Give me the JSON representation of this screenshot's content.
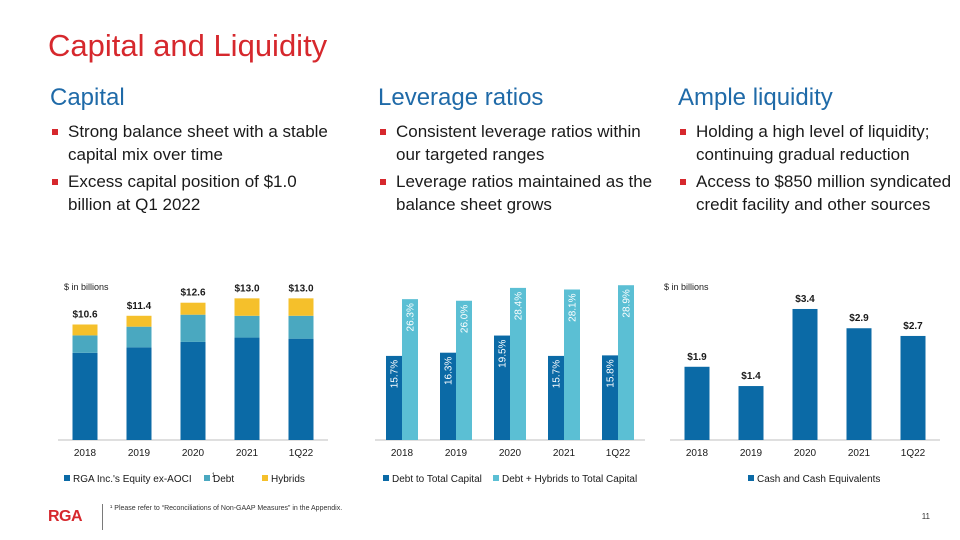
{
  "page": {
    "title": "Capital and Liquidity",
    "page_number": "11"
  },
  "columns": [
    {
      "heading": "Capital",
      "bullets": [
        "Strong balance sheet with a stable capital mix over time",
        "Excess capital position of $1.0 billion at Q1 2022"
      ]
    },
    {
      "heading": "Leverage ratios",
      "bullets": [
        "Consistent leverage ratios within our targeted ranges",
        "Leverage ratios maintained as the balance sheet grows"
      ]
    },
    {
      "heading": "Ample liquidity",
      "bullets": [
        "Holding a high level of liquidity; continuing gradual reduction",
        "Access to $850 million syndicated credit facility and other sources"
      ]
    }
  ],
  "colors": {
    "dark_blue": "#0b6aa6",
    "teal": "#4aa8c0",
    "light_teal": "#5bbfd4",
    "gold": "#f5c02b",
    "axis": "#bfbfbf",
    "red": "#d6282d"
  },
  "chart_data": [
    {
      "type": "bar",
      "stacked": true,
      "unit_label": "$ in billions",
      "categories": [
        "2018",
        "2019",
        "2020",
        "2021",
        "1Q22"
      ],
      "series": [
        {
          "name": "RGA Inc.'s Equity ex-AOCI",
          "footnote_marker": "1",
          "color": "#0b6aa6",
          "values": [
            8.0,
            8.5,
            9.0,
            9.4,
            9.3
          ]
        },
        {
          "name": "Debt",
          "color": "#4aa8c0",
          "values": [
            1.6,
            1.9,
            2.5,
            2.0,
            2.1
          ]
        },
        {
          "name": "Hybrids",
          "color": "#f5c02b",
          "values": [
            1.0,
            1.0,
            1.1,
            1.6,
            1.6
          ]
        }
      ],
      "totals": [
        "$10.6",
        "$11.4",
        "$12.6",
        "$13.0",
        "$13.0"
      ],
      "ylim": [
        0,
        14.5
      ]
    },
    {
      "type": "bar",
      "grouped": true,
      "categories": [
        "2018",
        "2019",
        "2020",
        "2021",
        "1Q22"
      ],
      "series": [
        {
          "name": "Debt to Total Capital",
          "color": "#0b6aa6",
          "values": [
            15.7,
            16.3,
            19.5,
            15.7,
            15.8
          ],
          "labels": [
            "15.7%",
            "16.3%",
            "19.5%",
            "15.7%",
            "15.8%"
          ]
        },
        {
          "name": "Debt + Hybrids to Total Capital",
          "color": "#5bbfd4",
          "values": [
            26.3,
            26.0,
            28.4,
            28.1,
            28.9
          ],
          "labels": [
            "26.3%",
            "26.0%",
            "28.4%",
            "28.1%",
            "28.9%"
          ]
        }
      ],
      "ylim": [
        0,
        29.5
      ]
    },
    {
      "type": "bar",
      "unit_label": "$ in billions",
      "categories": [
        "2018",
        "2019",
        "2020",
        "2021",
        "1Q22"
      ],
      "series": [
        {
          "name": "Cash and Cash Equivalents",
          "color": "#0b6aa6",
          "values": [
            1.9,
            1.4,
            3.4,
            2.9,
            2.7
          ],
          "labels": [
            "$1.9",
            "$1.4",
            "$3.4",
            "$2.9",
            "$2.7"
          ]
        }
      ],
      "ylim": [
        0,
        4.1
      ]
    }
  ],
  "footer": {
    "logo": "RGA",
    "footnote": "¹ Please refer to “Reconciliations of Non-GAAP Measures” in the Appendix."
  }
}
